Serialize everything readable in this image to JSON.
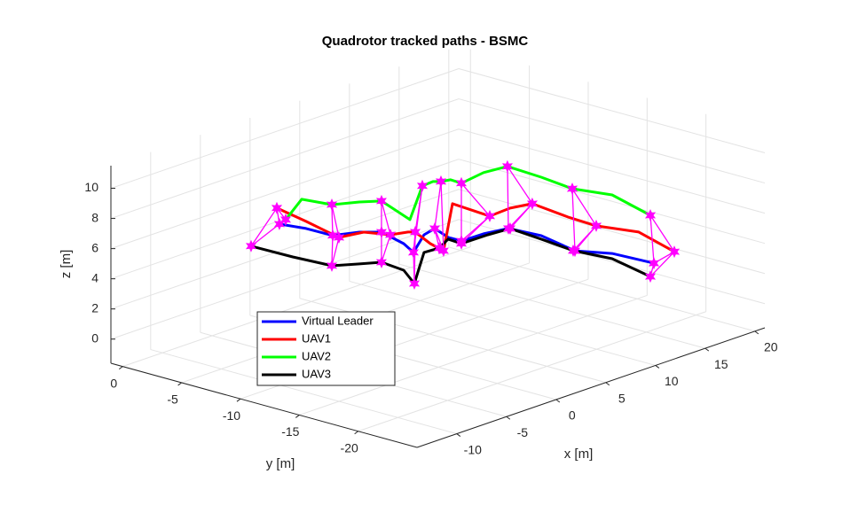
{
  "chart_data": {
    "type": "line3d",
    "title": "Quadrotor tracked paths - BSMC",
    "xlabel": "x [m]",
    "ylabel": "y [m]",
    "zlabel": "z [m]",
    "xlim": [
      -14,
      21
    ],
    "ylim": [
      -25,
      1
    ],
    "zlim": [
      -1.6,
      11.5
    ],
    "xticks": [
      -10,
      -5,
      0,
      5,
      10,
      15,
      20
    ],
    "yticks": [
      0,
      -5,
      -10,
      -15,
      -20
    ],
    "zticks": [
      0,
      2,
      4,
      6,
      8,
      10
    ],
    "grid": true,
    "legend_location": "southwest",
    "marker": {
      "color": "#ff00ff",
      "symbol": "hexagram",
      "every": 2
    },
    "y": [
      -3,
      -4,
      -5,
      -6,
      -7,
      -8,
      -9,
      -10,
      -11,
      -12,
      -13,
      -14,
      -15,
      -16,
      -17,
      -18,
      -19
    ],
    "series": [
      {
        "name": "Virtual Leader",
        "color": "#0000ff",
        "x": [
          -1.78,
          -0.28,
          1.21,
          2.71,
          3.75,
          4.8,
          4.6,
          4.48,
          4.37,
          4.53,
          4.68,
          5.73,
          7.04,
          9.16,
          11.37,
          13.93,
          16.95
        ],
        "z": [
          5.72,
          5.3,
          4.71,
          4.81,
          4.79,
          4.0,
          3.68,
          5.09,
          5.75,
          5.34,
          5.28,
          5.73,
          6.0,
          5.26,
          3.97,
          3.43,
          2.31
        ]
      },
      {
        "name": "UAV1",
        "color": "#ff0000",
        "x": [
          -2.04,
          -0.28,
          1.84,
          3.15,
          4.65,
          5.25,
          4.78,
          5.11,
          5.26,
          4.97,
          7.54,
          8.41,
          9.45,
          11.84,
          13.51,
          16.61,
          19.0
        ],
        "z": [
          6.84,
          5.77,
          4.44,
          4.71,
          4.41,
          4.67,
          4.99,
          4.36,
          4.07,
          7.47,
          6.28,
          6.83,
          7.1,
          5.89,
          5.14,
          4.24,
          2.61
        ]
      },
      {
        "name": "UAV2",
        "color": "#00ff00",
        "x": [
          -1.15,
          -0.73,
          1.12,
          2.71,
          3.75,
          5.43,
          5.49,
          5.38,
          5.0,
          4.79,
          4.68,
          5.73,
          6.95,
          9.16,
          11.1,
          13.93,
          16.59
        ],
        "z": [
          5.87,
          7.34,
          6.78,
          6.81,
          6.85,
          5.45,
          7.89,
          8.42,
          8.72,
          9.1,
          9.11,
          9.79,
          10.14,
          9.14,
          8.15,
          7.31,
          5.57
        ]
      },
      {
        "name": "UAV3",
        "color": "#000000",
        "x": [
          -4.63,
          -1.62,
          1.12,
          2.71,
          3.75,
          4.8,
          4.69,
          4.48,
          4.82,
          4.53,
          4.68,
          6.17,
          7.22,
          9.16,
          11.19,
          13.93,
          16.59
        ],
        "z": [
          4.9,
          3.72,
          2.73,
          2.7,
          2.79,
          2.24,
          1.6,
          3.92,
          4.35,
          5.22,
          5.11,
          5.57,
          5.96,
          5.03,
          4.02,
          3.08,
          1.51
        ]
      }
    ]
  }
}
